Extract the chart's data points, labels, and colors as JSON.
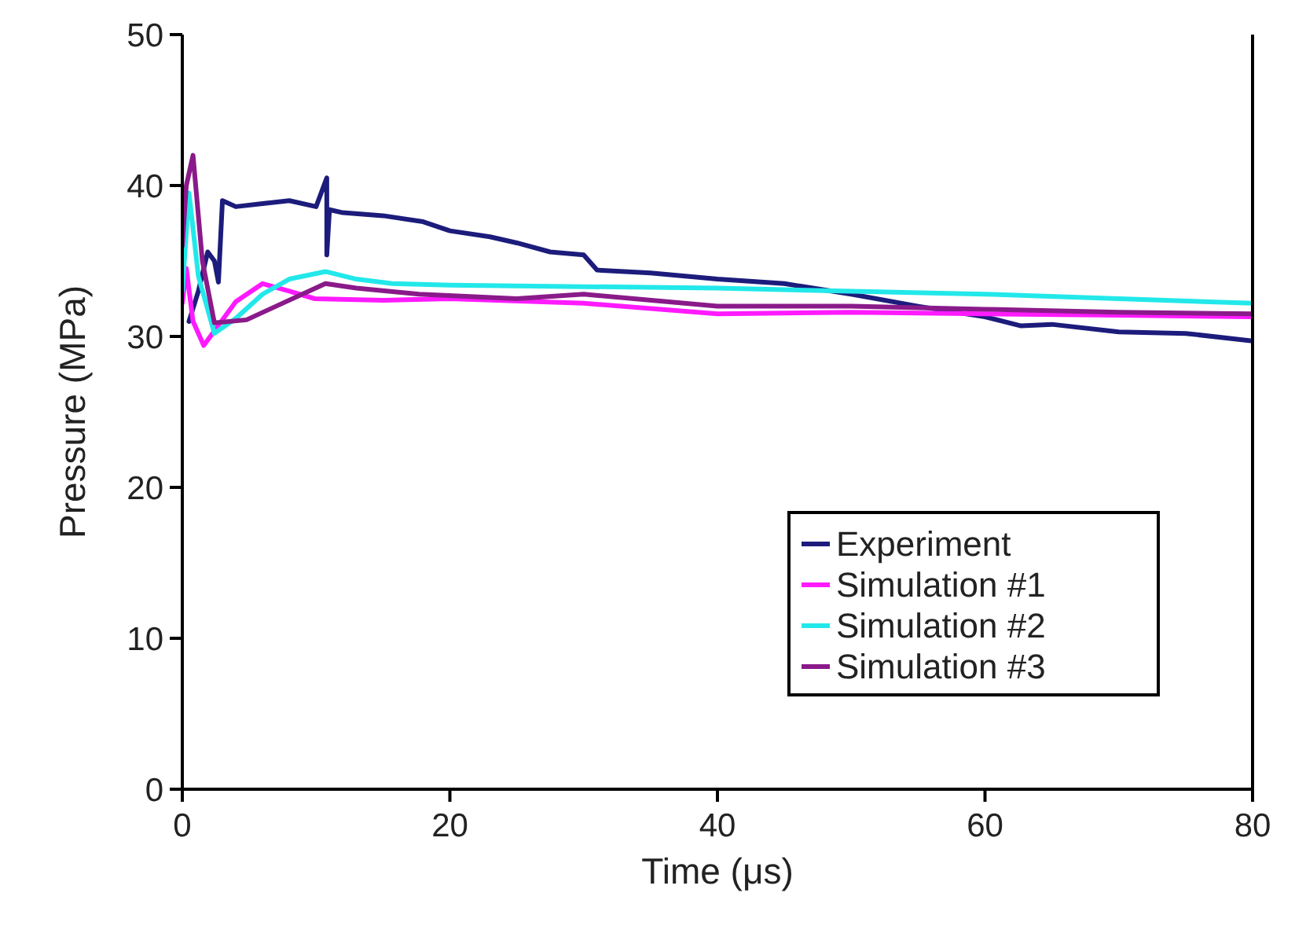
{
  "chart_data": {
    "type": "line",
    "xlabel": "Time (μs)",
    "ylabel": "Pressure (MPa)",
    "xlim": [
      0,
      80
    ],
    "xticks": [
      0,
      20,
      40,
      60,
      80
    ],
    "ylim": [
      0,
      50
    ],
    "yticks": [
      0,
      10,
      20,
      30,
      40,
      50
    ],
    "grid": false,
    "legend": "bottom right",
    "marker": "none",
    "line_style": "solid",
    "series": [
      {
        "name": "Experiment",
        "color": "#1c1c7c",
        "x": [
          0.5,
          1.2,
          1.9,
          2.4,
          2.7,
          3,
          4,
          6,
          8,
          10,
          10.8,
          10.8,
          11,
          12,
          15,
          18,
          20,
          23,
          25,
          27.5,
          30,
          31,
          35,
          40,
          45,
          50,
          55,
          60,
          62.7,
          65,
          70,
          75,
          80
        ],
        "values": [
          31,
          33,
          35.6,
          35,
          33.6,
          39,
          38.6,
          38.8,
          39,
          38.6,
          40.5,
          35.4,
          38.4,
          38.2,
          38,
          37.6,
          37,
          36.6,
          36.2,
          35.6,
          35.4,
          34.4,
          34.2,
          33.8,
          33.5,
          32.8,
          32,
          31.3,
          30.7,
          30.8,
          30.3,
          30.2,
          29.7
        ]
      },
      {
        "name": "Simulation #1",
        "color": "#ff1aff",
        "x": [
          0,
          0.3,
          0.8,
          1.6,
          2.5,
          4,
          6,
          8,
          9.9,
          15,
          20,
          30,
          40,
          50,
          60,
          70,
          80
        ],
        "values": [
          32.2,
          34.5,
          31,
          29.4,
          30.5,
          32.3,
          33.5,
          33,
          32.5,
          32.4,
          32.5,
          32.2,
          31.5,
          31.6,
          31.5,
          31.4,
          31.3
        ]
      },
      {
        "name": "Simulation #2",
        "color": "#22e8ea",
        "x": [
          0,
          0.5,
          1.2,
          2.4,
          4,
          6,
          8,
          10.7,
          13,
          15.7,
          20,
          30,
          40,
          50,
          60,
          70,
          80
        ],
        "values": [
          33,
          39.5,
          34,
          30.2,
          31.2,
          32.8,
          33.8,
          34.3,
          33.8,
          33.5,
          33.4,
          33.3,
          33.2,
          33,
          32.8,
          32.5,
          32.2
        ]
      },
      {
        "name": "Simulation #3",
        "color": "#8a1a8a",
        "x": [
          0,
          0.3,
          0.8,
          1.5,
          2.4,
          4.8,
          7,
          10.7,
          13,
          17.7,
          25,
          30,
          40,
          50,
          60,
          70,
          80
        ],
        "values": [
          36,
          40,
          42,
          35,
          30.9,
          31.1,
          32,
          33.5,
          33.2,
          32.8,
          32.5,
          32.8,
          32,
          32,
          31.8,
          31.6,
          31.5
        ]
      }
    ]
  }
}
